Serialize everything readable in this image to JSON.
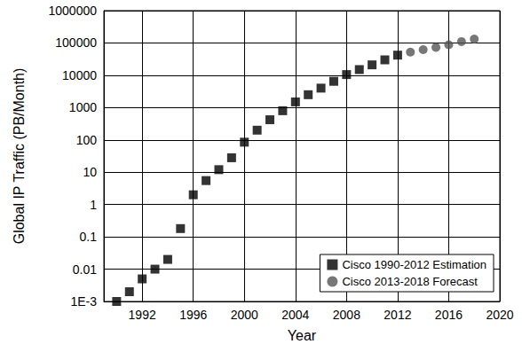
{
  "chart_data": {
    "type": "scatter",
    "x_label": "Year",
    "y_label": "Global IP Traffic (PB/Month)",
    "log": "y",
    "grid": true,
    "legend": "lower right",
    "xlim": [
      1989,
      2020
    ],
    "xticks": [
      1992,
      1996,
      2000,
      2004,
      2008,
      2012,
      2016,
      2020
    ],
    "ylim": [
      0.001,
      1000000
    ],
    "yticks": [
      {
        "value": 0.001,
        "label": "1E-3"
      },
      0.01,
      0.1,
      1,
      10,
      100,
      1000,
      10000,
      100000,
      1000000
    ],
    "series": [
      {
        "name": "Cisco 1990-2012 Estimation",
        "color": "#000000",
        "marker": "square",
        "x": [
          1990,
          1991,
          1992,
          1993,
          1994,
          1995,
          1996,
          1997,
          1998,
          1999,
          2000,
          2001,
          2002,
          2003,
          2004,
          2005,
          2006,
          2007,
          2008,
          2009,
          2010,
          2011,
          2012
        ],
        "values": [
          0.001,
          0.002,
          0.005,
          0.01,
          0.02,
          0.18,
          2,
          5.5,
          12,
          28,
          85,
          200,
          420,
          800,
          1500,
          2500,
          4000,
          6500,
          10500,
          15000,
          21000,
          30000,
          42000
        ]
      },
      {
        "name": "Cisco 2013-2018 Forecast",
        "color": "#555555",
        "marker": "circle",
        "x": [
          2013,
          2014,
          2015,
          2016,
          2017,
          2018
        ],
        "values": [
          52000,
          62000,
          73000,
          88000,
          110000,
          132000
        ]
      }
    ]
  }
}
